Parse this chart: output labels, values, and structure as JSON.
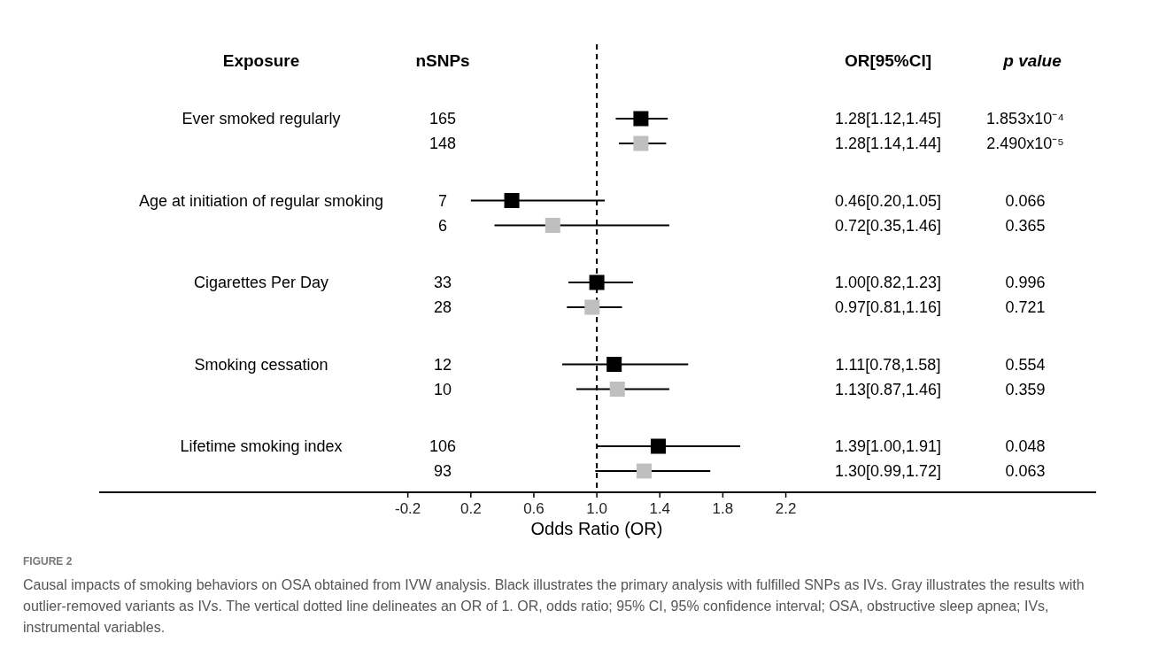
{
  "chart_data": {
    "type": "scatter",
    "orientation": "horizontal",
    "marker": "square",
    "ylabel": "Exposure",
    "xlabel": "Odds Ratio (OR)",
    "categories": [
      "Ever smoked regularly",
      null,
      "Age at initiation of regular smoking",
      null,
      "Cigarettes Per Day",
      null,
      "Smoking cessation",
      null,
      "Lifetime smoking index",
      null
    ],
    "values": [
      1.28,
      1.28,
      0.46,
      0.72,
      1.0,
      0.97,
      1.11,
      1.13,
      1.39,
      1.3
    ],
    "colors": [
      "#000000",
      "#bfbfbf",
      "#000000",
      "#bfbfbf",
      "#000000",
      "#bfbfbf",
      "#000000",
      "#bfbfbf",
      "#000000",
      "#bfbfbf"
    ],
    "errors": [
      [
        1.12,
        1.45
      ],
      [
        1.14,
        1.44
      ],
      [
        0.2,
        1.05
      ],
      [
        0.35,
        1.46
      ],
      [
        0.82,
        1.23
      ],
      [
        0.81,
        1.16
      ],
      [
        0.78,
        1.58
      ],
      [
        0.87,
        1.46
      ],
      [
        1.0,
        1.91
      ],
      [
        0.99,
        1.72
      ]
    ],
    "xlim": [
      -2.16,
      4.17
    ],
    "xticks": [
      -0.2,
      0.2,
      0.6,
      {
        "value": 1,
        "label": "1.0"
      },
      1.4,
      1.8,
      2.2
    ],
    "ref_lines": [
      {
        "axis": "x",
        "value": 1,
        "label": null,
        "color": "#000000",
        "line_style": "dashed"
      }
    ],
    "annotations": [
      "nSNPs",
      "OR[95%CI]",
      "p value",
      "165",
      "148",
      "7",
      "6",
      "33",
      "28",
      "12",
      "10",
      "106",
      "93",
      "1.28[1.12,1.45]",
      "1.28[1.14,1.44]",
      "0.46[0.20,1.05]",
      "0.72[0.35,1.46]",
      "1.00[0.82,1.23]",
      "0.97[0.81,1.16]",
      "1.11[0.78,1.58]",
      "1.13[0.87,1.46]",
      "1.39[1.00,1.91]",
      "1.30[0.99,1.72]",
      "1.853x10⁻⁴",
      "2.490x10⁻⁵",
      "0.066",
      "0.365",
      "0.996",
      "0.721",
      "0.554",
      "0.359",
      "0.048",
      "0.063",
      "FIGURE 2",
      "Causal impacts of smoking behaviors on OSA obtained from IVW analysis. Black illustrates the primary analysis with fulfilled SNPs as IVs. Gray illustrates the results with outlier-removed variants as IVs. The vertical dotted line delineates an OR of 1. OR, odds ratio; 95% CI, 95% confidence interval; OSA, obstructive sleep apnea; IVs, instrumental variables."
    ]
  }
}
